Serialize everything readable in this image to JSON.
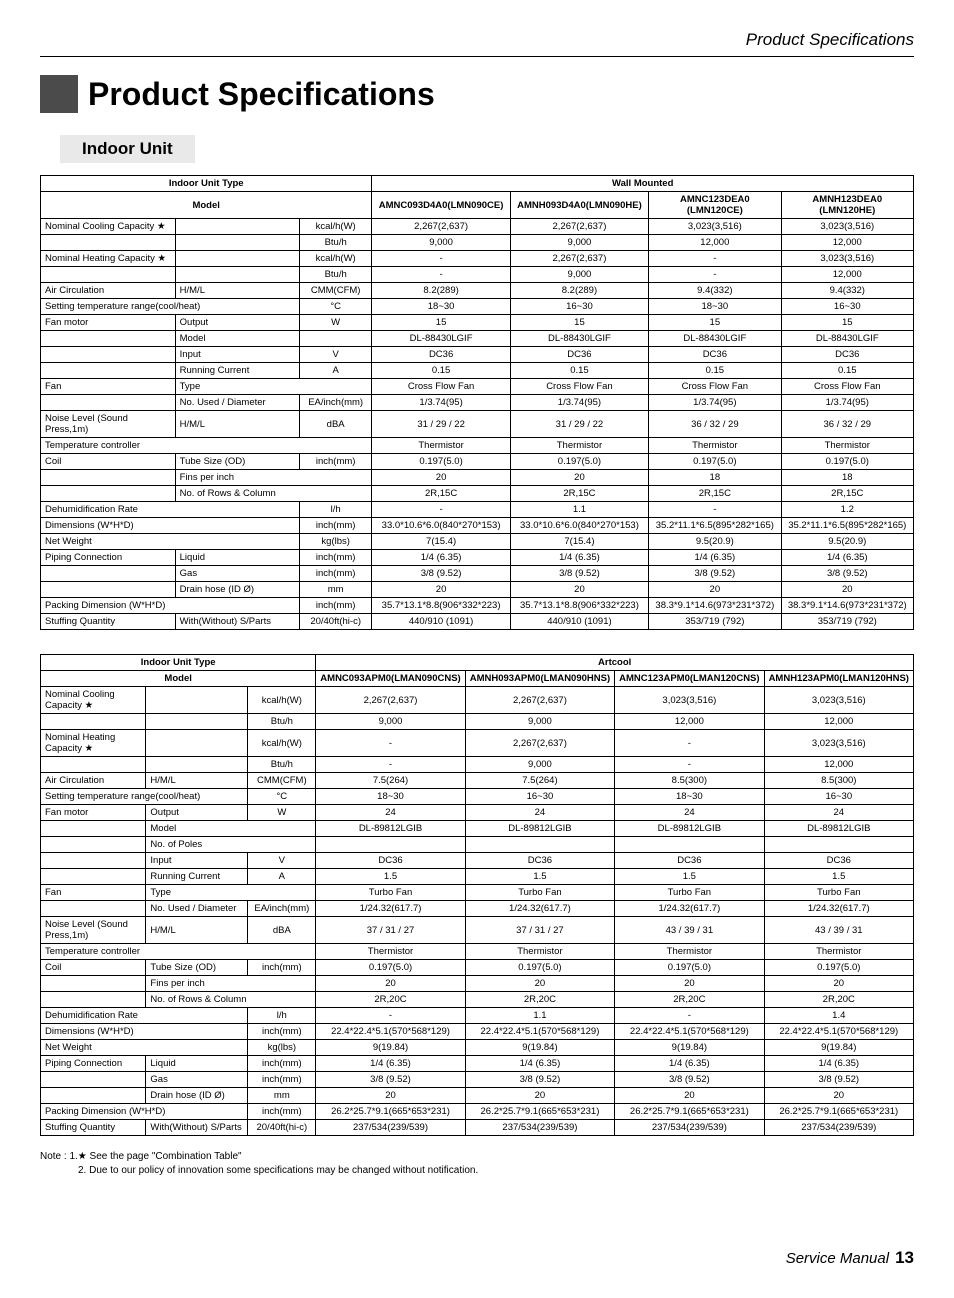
{
  "header_right": "Product Specifications",
  "title": "Product Specifications",
  "section": "Indoor Unit",
  "footer_label": "Service Manual",
  "footer_page": "13",
  "notes": {
    "line1": "Note : 1.★ See the page \"Combination Table\"",
    "line2": "2. Due to our policy of innovation some specifications may be changed without notification."
  },
  "table1": {
    "type_header": "Indoor Unit Type",
    "category": "Wall Mounted",
    "model_header": "Model",
    "models": [
      "AMNC093D4A0(LMN090CE)",
      "AMNH093D4A0(LMN090HE)",
      "AMNC123DEA0 (LMN120CE)",
      "AMNH123DEA0 (LMN120HE)"
    ],
    "rows": [
      {
        "l": "Nominal Cooling Capacity ★",
        "s": "",
        "u": "kcal/h(W)",
        "v": [
          "2,267(2,637)",
          "2,267(2,637)",
          "3,023(3,516)",
          "3,023(3,516)"
        ]
      },
      {
        "l": "",
        "s": "",
        "u": "Btu/h",
        "v": [
          "9,000",
          "9,000",
          "12,000",
          "12,000"
        ]
      },
      {
        "l": "Nominal Heating Capacity ★",
        "s": "",
        "u": "kcal/h(W)",
        "v": [
          "-",
          "2,267(2,637)",
          "-",
          "3,023(3,516)"
        ]
      },
      {
        "l": "",
        "s": "",
        "u": "Btu/h",
        "v": [
          "-",
          "9,000",
          "-",
          "12,000"
        ]
      },
      {
        "l": "Air Circulation",
        "s": "H/M/L",
        "u": "CMM(CFM)",
        "v": [
          "8.2(289)",
          "8.2(289)",
          "9.4(332)",
          "9.4(332)"
        ]
      },
      {
        "l": "Setting temperature range(cool/heat)",
        "s": "",
        "u": "°C",
        "v": [
          "18~30",
          "16~30",
          "18~30",
          "16~30"
        ],
        "span2": true
      },
      {
        "l": "Fan motor",
        "s": "Output",
        "u": "W",
        "v": [
          "15",
          "15",
          "15",
          "15"
        ]
      },
      {
        "l": "",
        "s": "Model",
        "u": "",
        "v": [
          "DL-88430LGIF",
          "DL-88430LGIF",
          "DL-88430LGIF",
          "DL-88430LGIF"
        ]
      },
      {
        "l": "",
        "s": "Input",
        "u": "V",
        "v": [
          "DC36",
          "DC36",
          "DC36",
          "DC36"
        ]
      },
      {
        "l": "",
        "s": "Running Current",
        "u": "A",
        "v": [
          "0.15",
          "0.15",
          "0.15",
          "0.15"
        ]
      },
      {
        "l": "Fan",
        "s": "Type",
        "u": "",
        "v": [
          "Cross Flow Fan",
          "Cross Flow Fan",
          "Cross Flow Fan",
          "Cross Flow Fan"
        ],
        "span_su": true
      },
      {
        "l": "",
        "s": "No. Used / Diameter",
        "u": "EA/inch(mm)",
        "v": [
          "1/3.74(95)",
          "1/3.74(95)",
          "1/3.74(95)",
          "1/3.74(95)"
        ]
      },
      {
        "l": "Noise Level (Sound Press,1m)",
        "s": "H/M/L",
        "u": "dBA",
        "v": [
          "31 / 29 / 22",
          "31 / 29 / 22",
          "36 / 32 / 29",
          "36 / 32 / 29"
        ]
      },
      {
        "l": "Temperature controller",
        "s": "",
        "u": "",
        "v": [
          "Thermistor",
          "Thermistor",
          "Thermistor",
          "Thermistor"
        ],
        "span3": true
      },
      {
        "l": "Coil",
        "s": "Tube Size (OD)",
        "u": "inch(mm)",
        "v": [
          "0.197(5.0)",
          "0.197(5.0)",
          "0.197(5.0)",
          "0.197(5.0)"
        ]
      },
      {
        "l": "",
        "s": "Fins per inch",
        "u": "",
        "v": [
          "20",
          "20",
          "18",
          "18"
        ],
        "span_su": true
      },
      {
        "l": "",
        "s": "No. of Rows & Column",
        "u": "",
        "v": [
          "2R,15C",
          "2R,15C",
          "2R,15C",
          "2R,15C"
        ],
        "span_su": true
      },
      {
        "l": "Dehumidification Rate",
        "s": "",
        "u": "l/h",
        "v": [
          "-",
          "1.1",
          "-",
          "1.2"
        ],
        "span2": true
      },
      {
        "l": "Dimensions (W*H*D)",
        "s": "",
        "u": "inch(mm)",
        "v": [
          "33.0*10.6*6.0(840*270*153)",
          "33.0*10.6*6.0(840*270*153)",
          "35.2*11.1*6.5(895*282*165)",
          "35.2*11.1*6.5(895*282*165)"
        ],
        "span2": true
      },
      {
        "l": "Net Weight",
        "s": "",
        "u": "kg(lbs)",
        "v": [
          "7(15.4)",
          "7(15.4)",
          "9.5(20.9)",
          "9.5(20.9)"
        ],
        "span2": true
      },
      {
        "l": "Piping Connection",
        "s": "Liquid",
        "u": "inch(mm)",
        "v": [
          "1/4 (6.35)",
          "1/4 (6.35)",
          "1/4 (6.35)",
          "1/4 (6.35)"
        ]
      },
      {
        "l": "",
        "s": "Gas",
        "u": "inch(mm)",
        "v": [
          "3/8 (9.52)",
          "3/8 (9.52)",
          "3/8 (9.52)",
          "3/8 (9.52)"
        ]
      },
      {
        "l": "",
        "s": "Drain hose (ID Ø)",
        "u": "mm",
        "v": [
          "20",
          "20",
          "20",
          "20"
        ]
      },
      {
        "l": "Packing Dimension (W*H*D)",
        "s": "",
        "u": "inch(mm)",
        "v": [
          "35.7*13.1*8.8(906*332*223)",
          "35.7*13.1*8.8(906*332*223)",
          "38.3*9.1*14.6(973*231*372)",
          "38.3*9.1*14.6(973*231*372)"
        ],
        "span2": true
      },
      {
        "l": "Stuffing Quantity",
        "s": "With(Without) S/Parts",
        "u": "20/40ft(hi-c)",
        "v": [
          "440/910 (1091)",
          "440/910 (1091)",
          "353/719 (792)",
          "353/719 (792)"
        ]
      }
    ]
  },
  "table2": {
    "type_header": "Indoor Unit Type",
    "category": "Artcool",
    "model_header": "Model",
    "models": [
      "AMNC093APM0(LMAN090CNS)",
      "AMNH093APM0(LMAN090HNS)",
      "AMNC123APM0(LMAN120CNS)",
      "AMNH123APM0(LMAN120HNS)"
    ],
    "rows": [
      {
        "l": "Nominal Cooling Capacity ★",
        "s": "",
        "u": "kcal/h(W)",
        "v": [
          "2,267(2,637)",
          "2,267(2,637)",
          "3,023(3,516)",
          "3,023(3,516)"
        ]
      },
      {
        "l": "",
        "s": "",
        "u": "Btu/h",
        "v": [
          "9,000",
          "9,000",
          "12,000",
          "12,000"
        ]
      },
      {
        "l": "Nominal Heating Capacity ★",
        "s": "",
        "u": "kcal/h(W)",
        "v": [
          "-",
          "2,267(2,637)",
          "-",
          "3,023(3,516)"
        ]
      },
      {
        "l": "",
        "s": "",
        "u": "Btu/h",
        "v": [
          "-",
          "9,000",
          "-",
          "12,000"
        ]
      },
      {
        "l": "Air Circulation",
        "s": "H/M/L",
        "u": "CMM(CFM)",
        "v": [
          "7.5(264)",
          "7.5(264)",
          "8.5(300)",
          "8.5(300)"
        ]
      },
      {
        "l": "Setting temperature range(cool/heat)",
        "s": "",
        "u": "°C",
        "v": [
          "18~30",
          "16~30",
          "18~30",
          "16~30"
        ],
        "span2": true
      },
      {
        "l": "Fan motor",
        "s": "Output",
        "u": "W",
        "v": [
          "24",
          "24",
          "24",
          "24"
        ]
      },
      {
        "l": "",
        "s": "Model",
        "u": "",
        "v": [
          "DL-89812LGIB",
          "DL-89812LGIB",
          "DL-89812LGIB",
          "DL-89812LGIB"
        ],
        "span_su": true
      },
      {
        "l": "",
        "s": "No. of Poles",
        "u": "",
        "v": [
          "",
          "",
          "",
          ""
        ],
        "span_su": true
      },
      {
        "l": "",
        "s": "Input",
        "u": "V",
        "v": [
          "DC36",
          "DC36",
          "DC36",
          "DC36"
        ]
      },
      {
        "l": "",
        "s": "Running Current",
        "u": "A",
        "v": [
          "1.5",
          "1.5",
          "1.5",
          "1.5"
        ]
      },
      {
        "l": "Fan",
        "s": "Type",
        "u": "",
        "v": [
          "Turbo Fan",
          "Turbo Fan",
          "Turbo Fan",
          "Turbo Fan"
        ],
        "span_su": true
      },
      {
        "l": "",
        "s": "No. Used / Diameter",
        "u": "EA/inch(mm)",
        "v": [
          "1/24.32(617.7)",
          "1/24.32(617.7)",
          "1/24.32(617.7)",
          "1/24.32(617.7)"
        ]
      },
      {
        "l": "Noise Level (Sound Press,1m)",
        "s": "H/M/L",
        "u": "dBA",
        "v": [
          "37 / 31 / 27",
          "37 / 31 / 27",
          "43 / 39 / 31",
          "43 / 39 / 31"
        ]
      },
      {
        "l": "Temperature controller",
        "s": "",
        "u": "",
        "v": [
          "Thermistor",
          "Thermistor",
          "Thermistor",
          "Thermistor"
        ],
        "span3": true
      },
      {
        "l": "Coil",
        "s": "Tube Size (OD)",
        "u": "inch(mm)",
        "v": [
          "0.197(5.0)",
          "0.197(5.0)",
          "0.197(5.0)",
          "0.197(5.0)"
        ]
      },
      {
        "l": "",
        "s": "Fins per inch",
        "u": "",
        "v": [
          "20",
          "20",
          "20",
          "20"
        ],
        "span_su": true
      },
      {
        "l": "",
        "s": "No. of Rows & Column",
        "u": "",
        "v": [
          "2R,20C",
          "2R,20C",
          "2R,20C",
          "2R,20C"
        ],
        "span_su": true
      },
      {
        "l": "Dehumidification Rate",
        "s": "",
        "u": "l/h",
        "v": [
          "-",
          "1.1",
          "-",
          "1.4"
        ],
        "span2": true
      },
      {
        "l": "Dimensions (W*H*D)",
        "s": "",
        "u": "inch(mm)",
        "v": [
          "22.4*22.4*5.1(570*568*129)",
          "22.4*22.4*5.1(570*568*129)",
          "22.4*22.4*5.1(570*568*129)",
          "22.4*22.4*5.1(570*568*129)"
        ],
        "span2": true
      },
      {
        "l": "Net Weight",
        "s": "",
        "u": "kg(lbs)",
        "v": [
          "9(19.84)",
          "9(19.84)",
          "9(19.84)",
          "9(19.84)"
        ],
        "span2": true
      },
      {
        "l": "Piping Connection",
        "s": "Liquid",
        "u": "inch(mm)",
        "v": [
          "1/4 (6.35)",
          "1/4 (6.35)",
          "1/4 (6.35)",
          "1/4 (6.35)"
        ]
      },
      {
        "l": "",
        "s": "Gas",
        "u": "inch(mm)",
        "v": [
          "3/8 (9.52)",
          "3/8 (9.52)",
          "3/8 (9.52)",
          "3/8 (9.52)"
        ]
      },
      {
        "l": "",
        "s": "Drain hose (ID Ø)",
        "u": "mm",
        "v": [
          "20",
          "20",
          "20",
          "20"
        ]
      },
      {
        "l": "Packing Dimension (W*H*D)",
        "s": "",
        "u": "inch(mm)",
        "v": [
          "26.2*25.7*9.1(665*653*231)",
          "26.2*25.7*9.1(665*653*231)",
          "26.2*25.7*9.1(665*653*231)",
          "26.2*25.7*9.1(665*653*231)"
        ],
        "span2": true
      },
      {
        "l": "Stuffing Quantity",
        "s": "With(Without) S/Parts",
        "u": "20/40ft(hi-c)",
        "v": [
          "237/534(239/539)",
          "237/534(239/539)",
          "237/534(239/539)",
          "237/534(239/539)"
        ]
      }
    ]
  }
}
